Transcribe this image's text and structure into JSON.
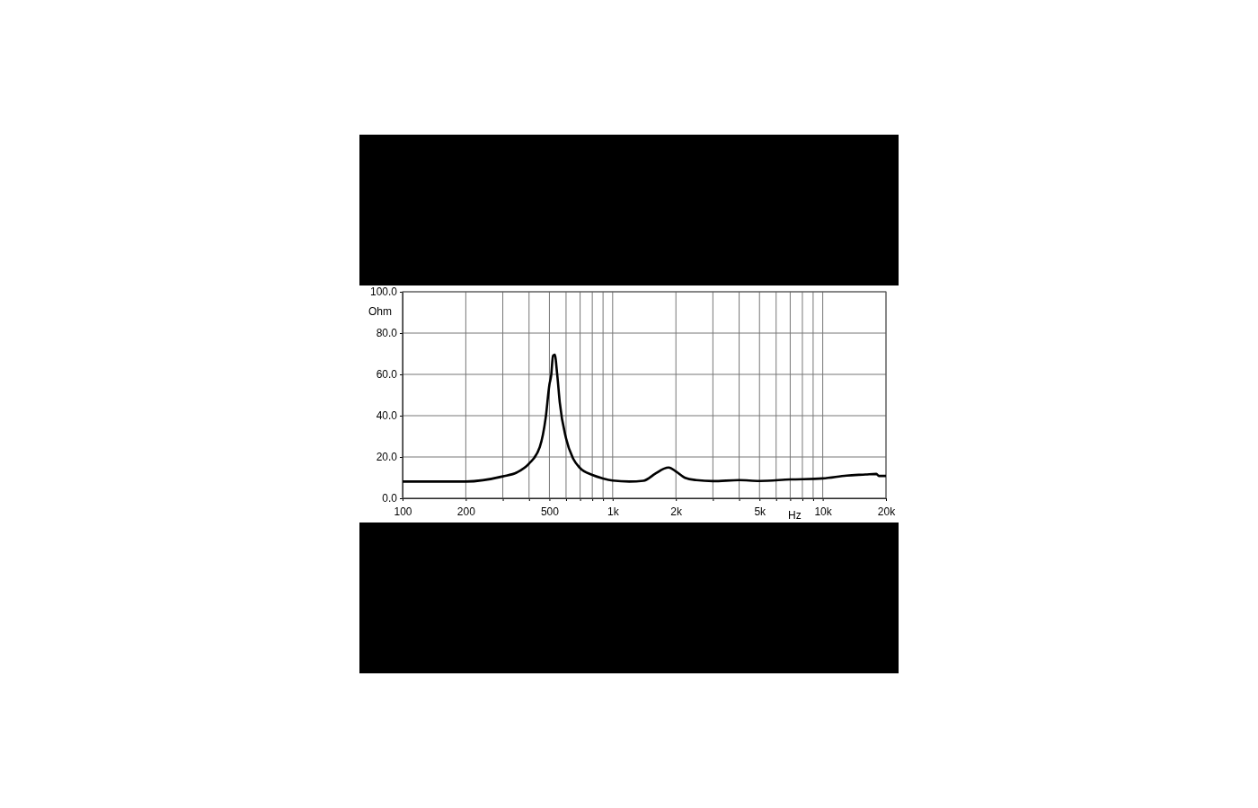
{
  "chart_data": {
    "type": "line",
    "xlabel": "Hz",
    "ylabel": "Ohm",
    "log": "x",
    "grid": true,
    "marker": "none",
    "line_style": "solid",
    "xlim": [
      100,
      20000
    ],
    "xticks": [
      100,
      200,
      {
        "value": 300,
        "label": null
      },
      {
        "value": 400,
        "label": null
      },
      500,
      {
        "value": 600,
        "label": null
      },
      {
        "value": 700,
        "label": null
      },
      {
        "value": 800,
        "label": null
      },
      {
        "value": 900,
        "label": null
      },
      {
        "value": 1000,
        "label": "1k"
      },
      {
        "value": 2000,
        "label": "2k"
      },
      {
        "value": 3000,
        "label": null
      },
      {
        "value": 4000,
        "label": null
      },
      {
        "value": 5000,
        "label": "5k"
      },
      {
        "value": 6000,
        "label": null
      },
      {
        "value": 7000,
        "label": null
      },
      {
        "value": 8000,
        "label": null
      },
      {
        "value": 9000,
        "label": null
      },
      {
        "value": 10000,
        "label": "10k"
      },
      {
        "value": 20000,
        "label": "20k"
      }
    ],
    "ylim": [
      0,
      100
    ],
    "yticks": [
      {
        "value": 0,
        "label": "0.0"
      },
      {
        "value": 20,
        "label": "20.0"
      },
      {
        "value": 40,
        "label": "40.0"
      },
      {
        "value": 60,
        "label": "60.0"
      },
      {
        "value": 80,
        "label": "80.0"
      },
      {
        "value": 100,
        "label": "100.0"
      }
    ],
    "x": [
      100,
      200,
      300,
      350,
      400,
      450,
      480,
      500,
      510,
      520,
      530,
      545,
      560,
      600,
      650,
      700,
      800,
      900,
      1000,
      1200,
      1400,
      1600,
      1750,
      1850,
      2000,
      2200,
      2500,
      3000,
      4000,
      5000,
      7000,
      10000,
      13000,
      16000,
      18000,
      18500,
      20000
    ],
    "series": [
      {
        "color": "#000000",
        "values": [
          8.1,
          8.1,
          10.6,
          12.5,
          16.8,
          24.8,
          39,
          55,
          59.6,
          69,
          69.5,
          59.6,
          46.5,
          29,
          19,
          14.6,
          11.3,
          9.6,
          8.6,
          8.1,
          8.5,
          12,
          14.3,
          14.9,
          13,
          10,
          8.8,
          8.3,
          8.8,
          8.4,
          9.1,
          9.6,
          11,
          11.5,
          11.8,
          10.8,
          10.8
        ]
      }
    ]
  }
}
